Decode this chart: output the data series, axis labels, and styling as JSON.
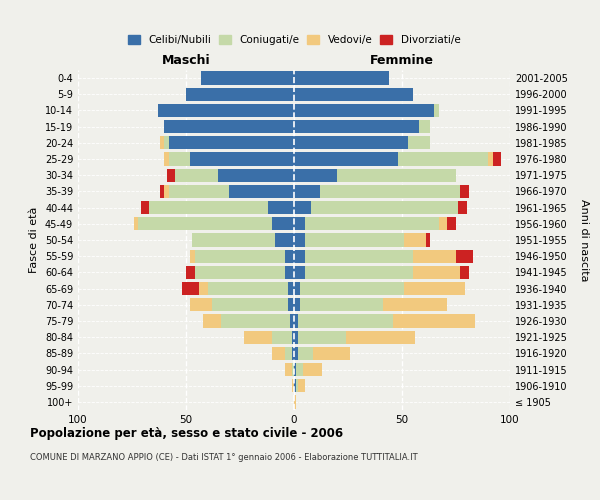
{
  "age_groups": [
    "100+",
    "95-99",
    "90-94",
    "85-89",
    "80-84",
    "75-79",
    "70-74",
    "65-69",
    "60-64",
    "55-59",
    "50-54",
    "45-49",
    "40-44",
    "35-39",
    "30-34",
    "25-29",
    "20-24",
    "15-19",
    "10-14",
    "5-9",
    "0-4"
  ],
  "birth_years": [
    "≤ 1905",
    "1906-1910",
    "1911-1915",
    "1916-1920",
    "1921-1925",
    "1926-1930",
    "1931-1935",
    "1936-1940",
    "1941-1945",
    "1946-1950",
    "1951-1955",
    "1956-1960",
    "1961-1965",
    "1966-1970",
    "1971-1975",
    "1976-1980",
    "1981-1985",
    "1986-1990",
    "1991-1995",
    "1996-2000",
    "2001-2005"
  ],
  "colors": {
    "celibi": "#3A6FA8",
    "coniugati": "#C5D9A8",
    "vedovi": "#F2C97E",
    "divorziati": "#CC2222"
  },
  "males_celibi": [
    0,
    0,
    0,
    1,
    1,
    2,
    3,
    3,
    4,
    4,
    9,
    10,
    12,
    30,
    35,
    48,
    58,
    60,
    63,
    50,
    43
  ],
  "males_coniugati": [
    0,
    0,
    1,
    3,
    9,
    32,
    35,
    37,
    42,
    42,
    38,
    62,
    55,
    28,
    20,
    10,
    2,
    0,
    0,
    0,
    0
  ],
  "males_vedovi": [
    0,
    1,
    3,
    6,
    13,
    8,
    10,
    4,
    0,
    2,
    0,
    2,
    0,
    2,
    0,
    2,
    2,
    0,
    0,
    0,
    0
  ],
  "males_divorziati": [
    0,
    0,
    0,
    0,
    0,
    0,
    0,
    8,
    4,
    0,
    0,
    0,
    4,
    2,
    4,
    0,
    0,
    0,
    0,
    0,
    0
  ],
  "females_nubili": [
    0,
    1,
    1,
    2,
    2,
    2,
    3,
    3,
    5,
    5,
    5,
    5,
    8,
    12,
    20,
    48,
    53,
    58,
    65,
    55,
    44
  ],
  "females_coniugati": [
    0,
    1,
    3,
    7,
    22,
    44,
    38,
    48,
    50,
    50,
    46,
    62,
    68,
    65,
    55,
    42,
    10,
    5,
    2,
    0,
    0
  ],
  "females_vedovi": [
    1,
    3,
    9,
    17,
    32,
    38,
    30,
    28,
    22,
    20,
    10,
    4,
    0,
    0,
    0,
    2,
    0,
    0,
    0,
    0,
    0
  ],
  "females_divorziati": [
    0,
    0,
    0,
    0,
    0,
    0,
    0,
    0,
    4,
    8,
    2,
    4,
    4,
    4,
    0,
    4,
    0,
    0,
    0,
    0,
    0
  ],
  "xlim": 100,
  "title": "Popolazione per età, sesso e stato civile - 2006",
  "subtitle": "COMUNE DI MARZANO APPIO (CE) - Dati ISTAT 1° gennaio 2006 - Elaborazione TUTTITALIA.IT",
  "xlabel_left": "Maschi",
  "xlabel_right": "Femmine",
  "ylabel_left": "Fasce di età",
  "ylabel_right": "Anni di nascita",
  "legend_labels": [
    "Celibi/Nubili",
    "Coniugati/e",
    "Vedovi/e",
    "Divorziati/e"
  ],
  "background_color": "#f0f0eb"
}
